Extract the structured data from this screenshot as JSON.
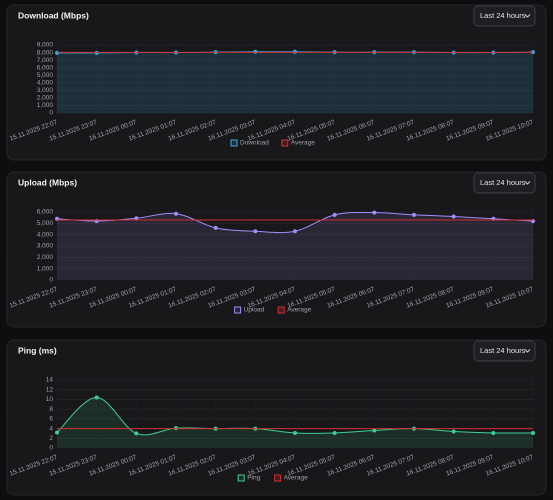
{
  "chart_data": [
    {
      "type": "line",
      "title": "Download (Mbps)",
      "range_selector": "Last 24 hours",
      "x": [
        "15.11.2025 22:07",
        "15.11.2025 23:07",
        "16.11.2025 00:07",
        "16.11.2025 01:07",
        "16.11.2025 02:07",
        "16.11.2025 03:07",
        "16.11.2025 04:07",
        "16.11.2025 05:07",
        "16.11.2025 06:07",
        "16.11.2025 07:07",
        "16.11.2025 08:07",
        "16.11.2025 09:07",
        "16.11.2025 10:07"
      ],
      "series": [
        {
          "name": "Download",
          "color": "#38a8e0",
          "fill": "rgba(56,168,224,0.16)",
          "values": [
            7950,
            7950,
            8000,
            8000,
            8050,
            8100,
            8100,
            8050,
            8050,
            8050,
            8000,
            8000,
            8050
          ]
        },
        {
          "name": "Average",
          "color": "#d32f2f",
          "values": [
            8030,
            8030,
            8030,
            8030,
            8030,
            8030,
            8030,
            8030,
            8030,
            8030,
            8030,
            8030,
            8030
          ]
        }
      ],
      "ylim": [
        0,
        9000
      ],
      "yticks": [
        0,
        {
          "value": 1000,
          "label": "1,000"
        },
        {
          "value": 2000,
          "label": "2,000"
        },
        {
          "value": 3000,
          "label": "3,000"
        },
        {
          "value": 4000,
          "label": "4,000"
        },
        {
          "value": 5000,
          "label": "5,000"
        },
        {
          "value": 6000,
          "label": "6,000"
        },
        {
          "value": 7000,
          "label": "7,000"
        },
        {
          "value": 8000,
          "label": "8,000"
        },
        {
          "value": 9000,
          "label": "9,000"
        }
      ],
      "grid": true
    },
    {
      "type": "line",
      "title": "Upload (Mbps)",
      "range_selector": "Last 24 hours",
      "x": [
        "15.11.2025 22:07",
        "15.11.2025 23:07",
        "16.11.2025 00:07",
        "16.11.2025 01:07",
        "16.11.2025 02:07",
        "16.11.2025 03:07",
        "16.11.2025 04:07",
        "16.11.2025 05:07",
        "16.11.2025 06:07",
        "16.11.2025 07:07",
        "16.11.2025 08:07",
        "16.11.2025 09:07",
        "16.11.2025 10:07"
      ],
      "series": [
        {
          "name": "Upload",
          "color": "#a78bfa",
          "fill": "rgba(167,139,250,0.12)",
          "values": [
            5400,
            5200,
            5450,
            5850,
            4600,
            4300,
            4300,
            5750,
            5950,
            5750,
            5600,
            5400,
            5200
          ]
        },
        {
          "name": "Average",
          "color": "#d32f2f",
          "values": [
            5290,
            5290,
            5290,
            5290,
            5290,
            5290,
            5290,
            5290,
            5290,
            5290,
            5290,
            5290,
            5290
          ]
        }
      ],
      "ylim": [
        0,
        6000
      ],
      "yticks": [
        0,
        {
          "value": 1000,
          "label": "1,000"
        },
        {
          "value": 2000,
          "label": "2,000"
        },
        {
          "value": 3000,
          "label": "3,000"
        },
        {
          "value": 4000,
          "label": "4,000"
        },
        {
          "value": 5000,
          "label": "5,000"
        },
        {
          "value": 6000,
          "label": "6,000"
        }
      ],
      "grid": true
    },
    {
      "type": "line",
      "title": "Ping (ms)",
      "range_selector": "Last 24 hours",
      "x": [
        "15.11.2025 22:07",
        "15.11.2025 23:07",
        "16.11.2025 00:07",
        "16.11.2025 01:07",
        "16.11.2025 02:07",
        "16.11.2025 03:07",
        "16.11.2025 04:07",
        "16.11.2025 05:07",
        "16.11.2025 06:07",
        "16.11.2025 07:07",
        "16.11.2025 08:07",
        "16.11.2025 09:07",
        "16.11.2025 10:07"
      ],
      "series": [
        {
          "name": "Ping",
          "color": "#3ecf95",
          "fill": "rgba(62,207,149,0.12)",
          "values": [
            3.2,
            10.4,
            3.0,
            4.1,
            4.0,
            4.0,
            3.1,
            3.1,
            3.6,
            4.0,
            3.4,
            3.1,
            3.1
          ]
        },
        {
          "name": "Average",
          "color": "#d32f2f",
          "values": [
            4.0,
            4.0,
            4.0,
            4.0,
            4.0,
            4.0,
            4.0,
            4.0,
            4.0,
            4.0,
            4.0,
            4.0,
            4.0
          ]
        }
      ],
      "ylim": [
        0,
        14
      ],
      "yticks": [
        0,
        2,
        4,
        6,
        8,
        10,
        12,
        14
      ],
      "grid": true
    }
  ]
}
